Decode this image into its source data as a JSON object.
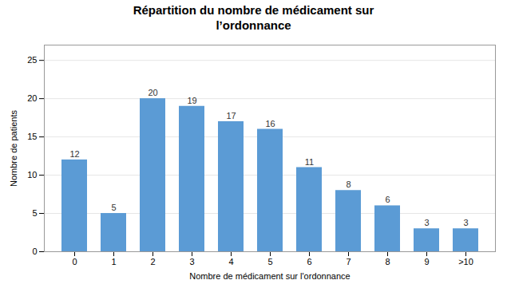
{
  "chart_data": {
    "type": "bar",
    "title": "Répartition du nombre de médicament sur\nl’ordonnance",
    "categories": [
      "0",
      "1",
      "2",
      "3",
      "4",
      "5",
      "6",
      "7",
      "8",
      "9",
      ">10"
    ],
    "values": [
      12,
      5,
      20,
      19,
      17,
      16,
      11,
      8,
      6,
      3,
      3
    ],
    "color": "#5b9bd5",
    "xlabel": "Nombre de médicament sur l'ordonnance",
    "ylabel": "Nombre de patients",
    "ylim": [
      0,
      27
    ],
    "yticks": [
      0,
      5,
      10,
      15,
      20,
      25
    ],
    "grid": true,
    "data_labels": true
  }
}
